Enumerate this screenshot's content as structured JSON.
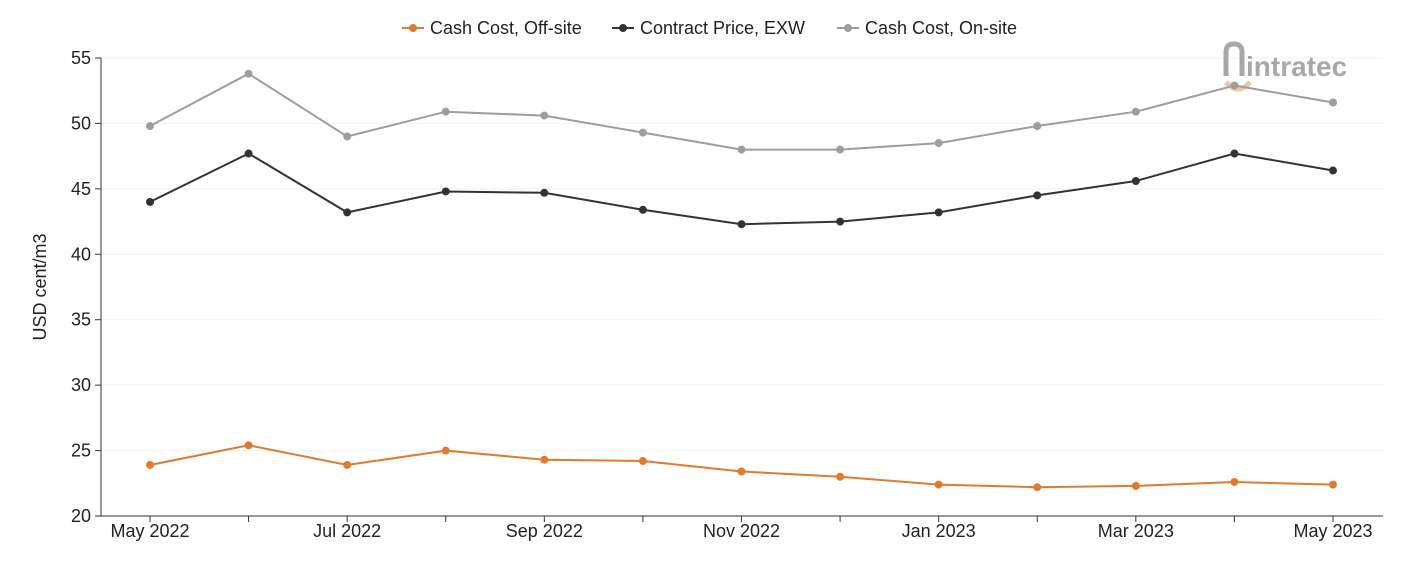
{
  "logo": {
    "text": "intratec",
    "icon": "intratec-logo-icon"
  },
  "chart_data": {
    "type": "line",
    "title": "",
    "xlabel": "",
    "ylabel": "USD cent/m3",
    "ylim": [
      20,
      55
    ],
    "yticks": [
      20,
      25,
      30,
      35,
      40,
      45,
      50,
      55
    ],
    "grid": true,
    "legend_position": "top-center",
    "x": [
      "May 2022",
      "Jun 2022",
      "Jul 2022",
      "Aug 2022",
      "Sep 2022",
      "Oct 2022",
      "Nov 2022",
      "Dec 2022",
      "Jan 2023",
      "Feb 2023",
      "Mar 2023",
      "Apr 2023",
      "May 2023"
    ],
    "xtick_labels": [
      "May 2022",
      "",
      "Jul 2022",
      "",
      "Sep 2022",
      "",
      "Nov 2022",
      "",
      "Jan 2023",
      "",
      "Mar 2023",
      "",
      "May 2023"
    ],
    "series": [
      {
        "name": "Cash Cost, Off-site",
        "color": "#e07b2e",
        "values": [
          23.9,
          25.4,
          23.9,
          25.0,
          24.3,
          24.2,
          23.4,
          23.0,
          22.4,
          22.2,
          22.3,
          22.6,
          22.4
        ]
      },
      {
        "name": "Contract Price, EXW",
        "color": "#333333",
        "values": [
          44.0,
          47.7,
          43.2,
          44.8,
          44.7,
          43.4,
          42.3,
          42.5,
          43.2,
          44.5,
          45.6,
          47.7,
          46.4
        ]
      },
      {
        "name": "Cash Cost, On-site",
        "color": "#9e9e9e",
        "values": [
          49.8,
          53.8,
          49.0,
          50.9,
          50.6,
          49.3,
          48.0,
          48.0,
          48.5,
          49.8,
          50.9,
          52.9,
          51.6
        ]
      }
    ]
  }
}
